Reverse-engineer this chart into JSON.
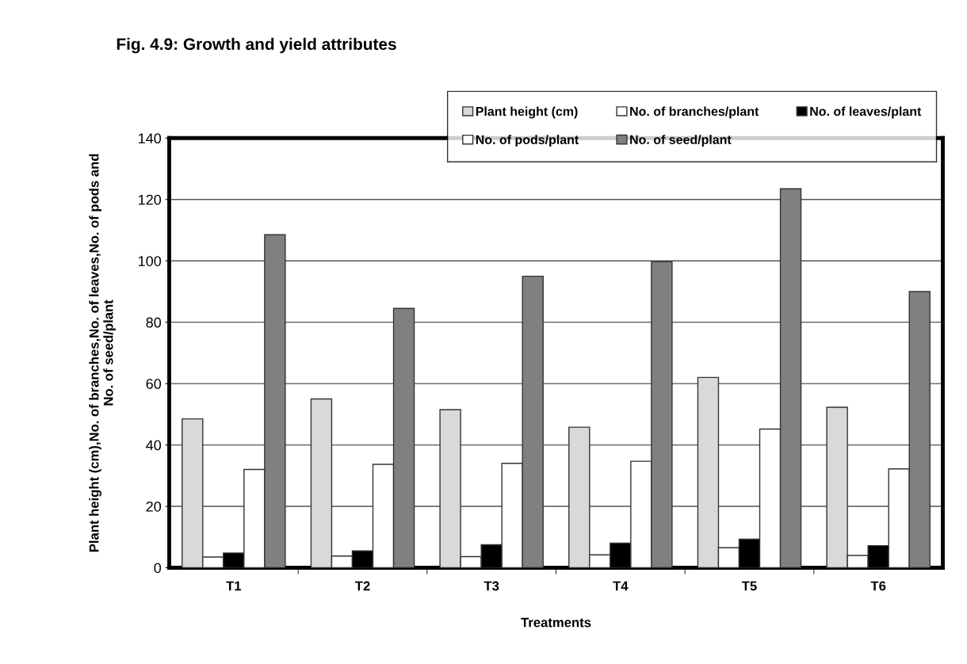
{
  "chart_data": {
    "type": "bar",
    "title": "Fig. 4.9: Growth and yield attributes",
    "xlabel": "Treatments",
    "ylabel": "Plant height (cm),No. of branches,No. of leaves,No. of pods and\nNo. of seed/plant",
    "categories": [
      "T1",
      "T2",
      "T3",
      "T4",
      "T5",
      "T6"
    ],
    "series": [
      {
        "name": "Plant height (cm)",
        "color": "#d9d9d9",
        "values": [
          48.5,
          55,
          51.5,
          45.8,
          62,
          52.3
        ]
      },
      {
        "name": "No. of branches/plant",
        "color": "#ffffff",
        "values": [
          3.5,
          3.8,
          3.6,
          4.2,
          6.5,
          4.0
        ]
      },
      {
        "name": "No. of leaves/plant",
        "color": "#000000",
        "values": [
          4.8,
          5.5,
          7.5,
          8,
          9.3,
          7.2
        ]
      },
      {
        "name": "No. of pods/plant",
        "color": "#ffffff",
        "values": [
          32,
          33.7,
          34,
          34.7,
          45.2,
          32.2
        ]
      },
      {
        "name": "No. of seed/plant",
        "color": "#808080",
        "values": [
          108.5,
          84.5,
          95,
          99.7,
          123.5,
          90
        ]
      }
    ],
    "ylim": [
      0,
      140
    ],
    "yticks": [
      0,
      20,
      40,
      60,
      80,
      100,
      120,
      140
    ],
    "grid": "y",
    "legend": "top right"
  }
}
